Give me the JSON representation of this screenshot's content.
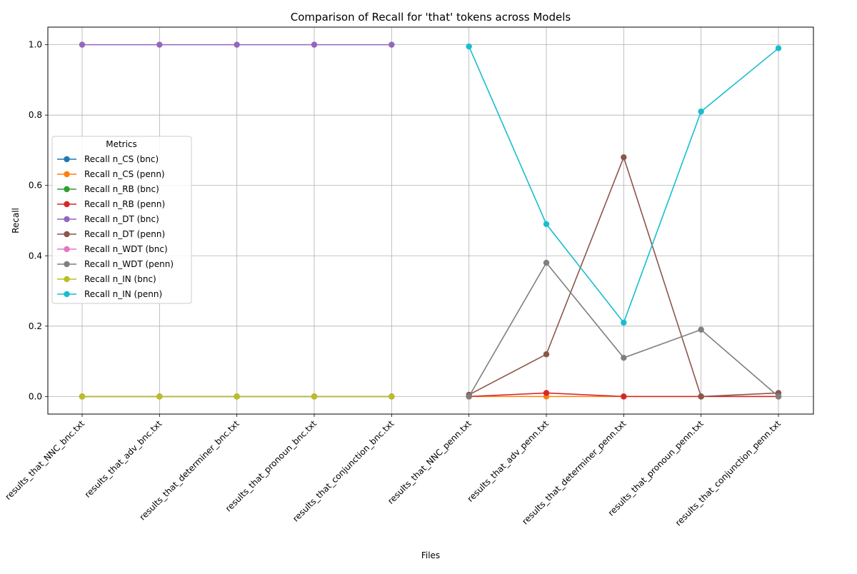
{
  "chart_data": {
    "type": "line",
    "title": "Comparison of Recall for 'that' tokens across Models",
    "xlabel": "Files",
    "ylabel": "Recall",
    "ylim": [
      -0.05,
      1.05
    ],
    "yticks": [
      0.0,
      0.2,
      0.4,
      0.6,
      0.8,
      1.0
    ],
    "ytick_labels": [
      "0.0",
      "0.2",
      "0.4",
      "0.6",
      "0.8",
      "1.0"
    ],
    "grid": true,
    "legend": {
      "title": "Metrics",
      "placement": "center-left"
    },
    "categories": [
      "results_that_NNC_bnc.txt",
      "results_that_adv_bnc.txt",
      "results_that_determiner_bnc.txt",
      "results_that_pronoun_bnc.txt",
      "results_that_conjunction_bnc.txt",
      "results_that_NNC_penn.txt",
      "results_that_adv_penn.txt",
      "results_that_determiner_penn.txt",
      "results_that_pronoun_penn.txt",
      "results_that_conjunction_penn.txt"
    ],
    "series": [
      {
        "name": "Recall n_CS (bnc)",
        "color": "#1f77b4",
        "values": [
          0,
          0,
          0,
          0,
          0,
          null,
          null,
          null,
          null,
          null
        ]
      },
      {
        "name": "Recall n_CS (penn)",
        "color": "#ff7f0e",
        "values": [
          null,
          null,
          null,
          null,
          null,
          0,
          0,
          0,
          0,
          0
        ]
      },
      {
        "name": "Recall n_RB (bnc)",
        "color": "#2ca02c",
        "values": [
          0,
          0,
          0,
          0,
          0,
          null,
          null,
          null,
          null,
          null
        ]
      },
      {
        "name": "Recall n_RB (penn)",
        "color": "#d62728",
        "values": [
          null,
          null,
          null,
          null,
          null,
          0,
          0.01,
          0,
          0,
          0
        ]
      },
      {
        "name": "Recall n_DT (bnc)",
        "color": "#9467bd",
        "values": [
          1.0,
          1.0,
          1.0,
          1.0,
          1.0,
          null,
          null,
          null,
          null,
          null
        ]
      },
      {
        "name": "Recall n_DT (penn)",
        "color": "#8c564b",
        "values": [
          null,
          null,
          null,
          null,
          null,
          0.005,
          0.12,
          0.68,
          0,
          0.01
        ]
      },
      {
        "name": "Recall n_WDT (bnc)",
        "color": "#e377c2",
        "values": [
          0,
          0,
          0,
          0,
          0,
          null,
          null,
          null,
          null,
          null
        ]
      },
      {
        "name": "Recall n_WDT (penn)",
        "color": "#7f7f7f",
        "values": [
          null,
          null,
          null,
          null,
          null,
          0,
          0.38,
          0.11,
          0.19,
          0
        ]
      },
      {
        "name": "Recall n_IN (bnc)",
        "color": "#bcbd22",
        "values": [
          0,
          0,
          0,
          0,
          0,
          null,
          null,
          null,
          null,
          null
        ]
      },
      {
        "name": "Recall n_IN (penn)",
        "color": "#17becf",
        "values": [
          null,
          null,
          null,
          null,
          null,
          0.995,
          0.49,
          0.21,
          0.81,
          0.99
        ]
      }
    ]
  }
}
